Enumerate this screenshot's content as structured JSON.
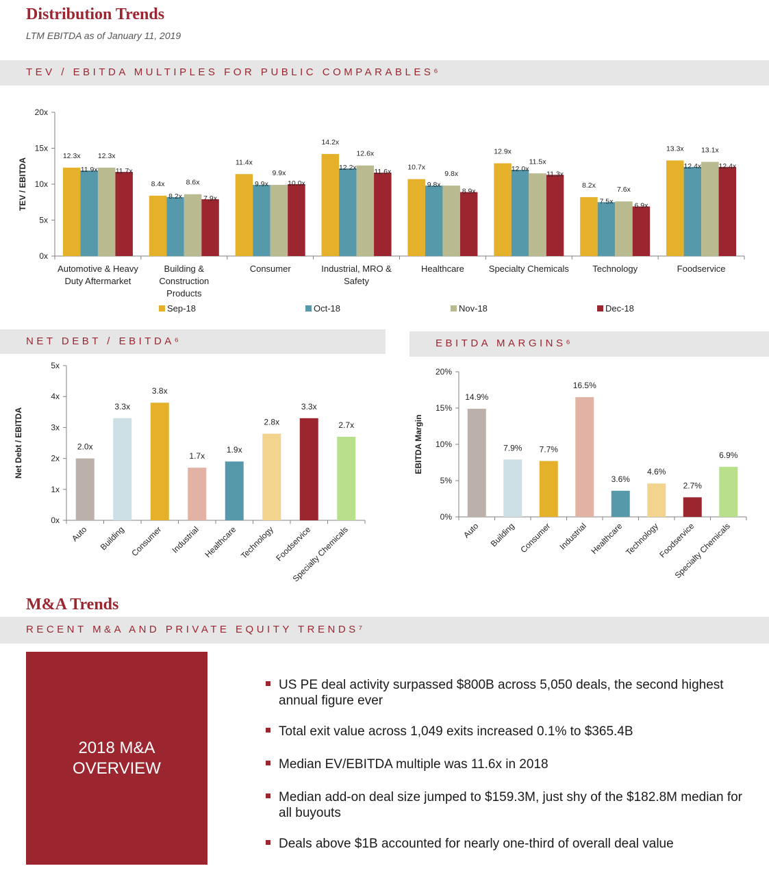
{
  "header": {
    "title": "Distribution Trends",
    "subtitle": "LTM EBITDA as of January 11, 2019"
  },
  "sections": {
    "tev": "TEV / EBITDA MULTIPLES FOR PUBLIC COMPARABLES⁶",
    "netdebt": "NET DEBT / EBITDA⁶",
    "margins": "EBITDA MARGINS⁶",
    "ma_title": "M&A Trends",
    "ma_band": "RECENT M&A AND PRIVATE EQUITY TRENDS⁷"
  },
  "colors": {
    "brand": "#9b2630",
    "band": "#e6e6e6",
    "series": [
      "#e5b02a",
      "#5699ab",
      "#b9ba8f",
      "#9b2630"
    ]
  },
  "chart_data": [
    {
      "id": "tev",
      "type": "bar",
      "ylabel": "TEV / EBITDA",
      "ylim": [
        0,
        20
      ],
      "yticks": [
        "0x",
        "5x",
        "10x",
        "15x",
        "20x"
      ],
      "categories": [
        "Automotive & Heavy Duty Aftermarket",
        "Building & Construction Products",
        "Consumer",
        "Industrial, MRO & Safety",
        "Healthcare",
        "Specialty Chemicals",
        "Technology",
        "Foodservice"
      ],
      "category_lines": [
        [
          "Automotive & Heavy",
          "Duty Aftermarket"
        ],
        [
          "Building &",
          "Construction",
          "Products"
        ],
        [
          "Consumer"
        ],
        [
          "Industrial, MRO &",
          "Safety"
        ],
        [
          "Healthcare"
        ],
        [
          "Specialty Chemicals"
        ],
        [
          "Technology"
        ],
        [
          "Foodservice"
        ]
      ],
      "series": [
        {
          "name": "Sep-18",
          "values": [
            12.3,
            8.4,
            11.4,
            14.2,
            10.7,
            12.9,
            8.2,
            13.3
          ]
        },
        {
          "name": "Oct-18",
          "values": [
            11.9,
            8.2,
            9.9,
            12.2,
            9.8,
            12.0,
            7.5,
            12.4
          ]
        },
        {
          "name": "Nov-18",
          "values": [
            12.3,
            8.6,
            9.9,
            12.6,
            9.8,
            11.5,
            7.6,
            13.1
          ]
        },
        {
          "name": "Dec-18",
          "values": [
            11.7,
            7.9,
            10.0,
            11.6,
            8.9,
            11.3,
            6.9,
            12.4
          ]
        }
      ],
      "legend": "bottom",
      "label_suffix": "x"
    },
    {
      "id": "netdebt",
      "type": "bar",
      "ylabel": "Net Debt / EBITDA",
      "ylim": [
        0,
        5
      ],
      "yticks": [
        "0x",
        "1x",
        "2x",
        "3x",
        "4x",
        "5x"
      ],
      "categories": [
        "Auto",
        "Building",
        "Consumer",
        "Industrial",
        "Healthcare",
        "Technology",
        "Foodservice",
        "Specialty Chemicals"
      ],
      "values": [
        2.0,
        3.3,
        3.8,
        1.7,
        1.9,
        2.8,
        3.3,
        2.7
      ],
      "colors": [
        "#bcb1aa",
        "#cde0e5",
        "#e5b02a",
        "#e2b3a4",
        "#5699ab",
        "#f2d48f",
        "#9b2630",
        "#b8e08c"
      ],
      "label_suffix": "x"
    },
    {
      "id": "margins",
      "type": "bar",
      "ylabel": "EBITDA Margin",
      "ylim": [
        0,
        20
      ],
      "yticks": [
        "0%",
        "5%",
        "10%",
        "15%",
        "20%"
      ],
      "categories": [
        "Auto",
        "Building",
        "Consumer",
        "Industrial",
        "Healthcare",
        "Technology",
        "Foodservice",
        "Specialty Chemicals"
      ],
      "values": [
        14.9,
        7.9,
        7.7,
        16.5,
        3.6,
        4.6,
        2.7,
        6.9
      ],
      "colors": [
        "#bcb1aa",
        "#cde0e5",
        "#e5b02a",
        "#e2b3a4",
        "#5699ab",
        "#f2d48f",
        "#9b2630",
        "#b8e08c"
      ],
      "label_suffix": "%"
    }
  ],
  "overview": {
    "box_lines": [
      "2018 M&A",
      "OVERVIEW"
    ],
    "bullets": [
      "US PE deal activity surpassed $800B across 5,050 deals, the second highest annual figure ever",
      "Total exit value across 1,049 exits increased 0.1% to $365.4B",
      "Median EV/EBITDA multiple was 11.6x in 2018",
      "Median add-on deal size jumped to $159.3M, just shy of the $182.8M median for all buyouts",
      "Deals above $1B accounted for nearly one-third of overall deal value"
    ]
  }
}
